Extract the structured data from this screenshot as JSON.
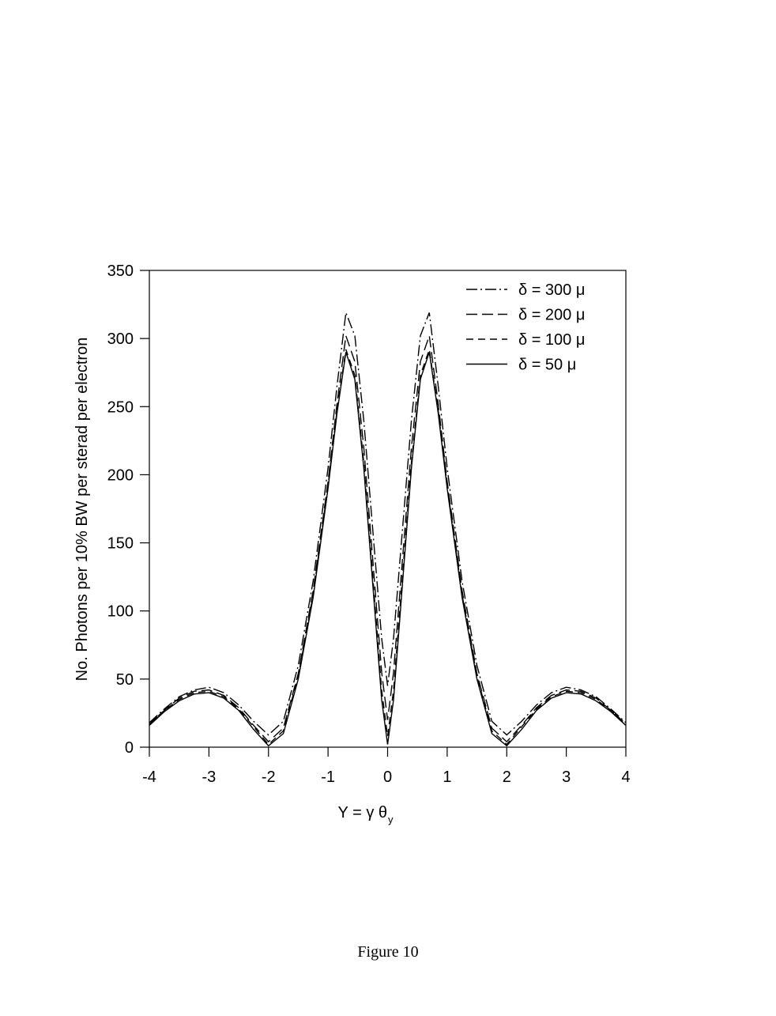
{
  "chart_data": {
    "type": "line",
    "ylabel": "No. Photons per 10% BW per sterad per electron",
    "xlabel": "Y =  γ θ",
    "xlabel_subscript": "y",
    "caption": "Figure 10",
    "x": [
      -4,
      -3.75,
      -3.5,
      -3.25,
      -3,
      -2.75,
      -2.5,
      -2.25,
      -2,
      -1.75,
      -1.5,
      -1.25,
      -1,
      -0.85,
      -0.7,
      -0.55,
      -0.4,
      -0.25,
      -0.1,
      0,
      0.1,
      0.25,
      0.4,
      0.55,
      0.7,
      0.85,
      1,
      1.25,
      1.5,
      1.75,
      2,
      2.25,
      2.5,
      2.75,
      3,
      3.25,
      3.5,
      3.75,
      4
    ],
    "series": [
      {
        "name": "δ = 300 μ",
        "color": "#000000",
        "dash": "dash-dot",
        "values": [
          18,
          28,
          37,
          42,
          44,
          40,
          31,
          19,
          9,
          19,
          60,
          122,
          205,
          265,
          319,
          302,
          240,
          160,
          80,
          45,
          80,
          160,
          240,
          302,
          319,
          265,
          205,
          122,
          60,
          19,
          9,
          19,
          31,
          40,
          44,
          42,
          37,
          28,
          18
        ]
      },
      {
        "name": "δ = 200 μ",
        "color": "#000000",
        "dash": "long-dash",
        "values": [
          17,
          27,
          36,
          41,
          42,
          38,
          29,
          16,
          4,
          14,
          54,
          115,
          195,
          252,
          302,
          283,
          220,
          138,
          55,
          20,
          55,
          138,
          220,
          283,
          302,
          252,
          195,
          115,
          54,
          14,
          4,
          16,
          29,
          38,
          42,
          41,
          36,
          27,
          17
        ]
      },
      {
        "name": "δ = 100 μ",
        "color": "#000000",
        "dash": "dash",
        "values": [
          17,
          27,
          35,
          40,
          41,
          37,
          28,
          15,
          2,
          12,
          52,
          112,
          192,
          247,
          292,
          273,
          209,
          126,
          42,
          8,
          42,
          126,
          209,
          273,
          292,
          247,
          192,
          112,
          52,
          12,
          2,
          15,
          28,
          37,
          41,
          40,
          35,
          27,
          17
        ]
      },
      {
        "name": "δ = 50 μ",
        "color": "#000000",
        "dash": "solid",
        "values": [
          16,
          26,
          34,
          39,
          40,
          36,
          27,
          13,
          1,
          10,
          50,
          110,
          190,
          245,
          290,
          270,
          205,
          120,
          35,
          2,
          35,
          120,
          205,
          270,
          290,
          245,
          190,
          110,
          50,
          10,
          1,
          13,
          27,
          36,
          40,
          39,
          34,
          26,
          16
        ]
      }
    ],
    "xlim": [
      -4,
      4
    ],
    "xticks": [
      -4,
      -3,
      -2,
      -1,
      0,
      1,
      2,
      3,
      4
    ],
    "ylim": [
      0,
      350
    ],
    "yticks": [
      0,
      50,
      100,
      150,
      200,
      250,
      300,
      350
    ],
    "legend": "top-right"
  }
}
